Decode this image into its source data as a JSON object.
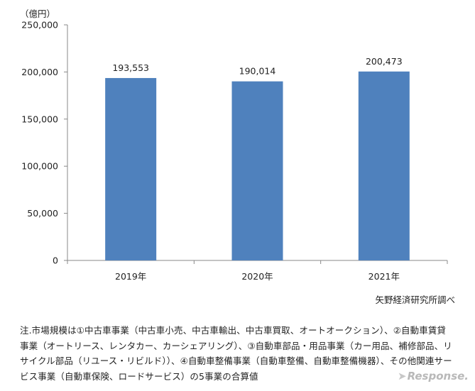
{
  "unit_label": "（億円）",
  "source_label": "矢野経済研究所調べ",
  "note": "注.市場規模は①中古車事業（中古車小売、中古車輸出、中古車買取、オートオークション）、②自動車賃貸事業（オートリース、レンタカー、カーシェアリング）、③自動車部品・用品事業（カー用品、補修部品、リサイクル部品（リユース・リビルド））、④自動車整備事業（自動車整備、自動車整備機器）、その他関連サービス事業（自動車保険、ロードサービス）の5事業の合算値",
  "watermark": "Response.",
  "colors": {
    "bar": "#4f81bd",
    "axis": "#888888"
  },
  "chart_data": {
    "type": "bar",
    "categories": [
      "2019年",
      "2020年",
      "2021年"
    ],
    "values": [
      193553,
      190014,
      200473
    ],
    "data_labels": [
      "193,553",
      "190,014",
      "200,473"
    ],
    "ylim": [
      0,
      250000
    ],
    "yticks": [
      0,
      50000,
      100000,
      150000,
      200000,
      250000
    ],
    "ytick_labels": [
      "0",
      "50,000",
      "100,000",
      "150,000",
      "200,000",
      "250,000"
    ],
    "ylabel": "（億円）",
    "xlabel": "",
    "grid": false
  }
}
